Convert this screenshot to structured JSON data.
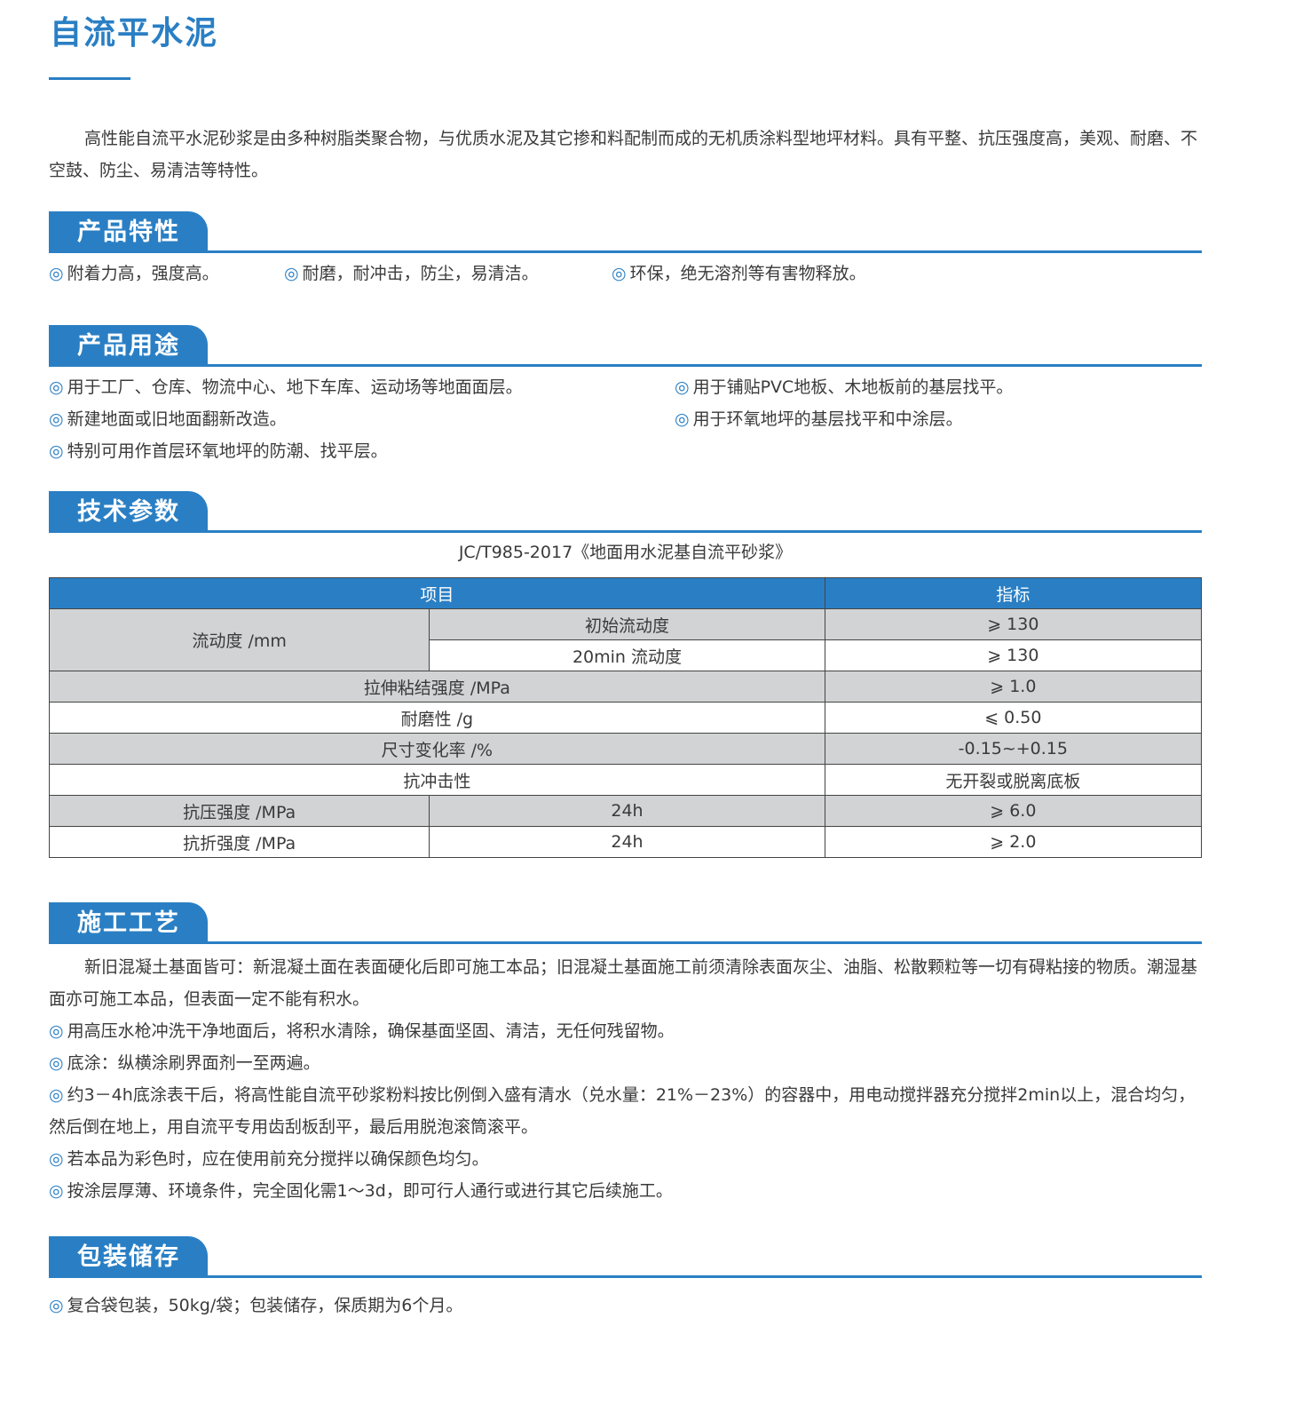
{
  "title": "自流平水泥",
  "intro": "高性能自流平水泥砂浆是由多种树脂类聚合物，与优质水泥及其它掺和料配制而成的无机质涂料型地坪材料。具有平整、抗压强度高，美观、耐磨、不空鼓、防尘、易清洁等特性。",
  "bullet_icon": "double-circle-icon",
  "bullet_glyph": "◎",
  "accent_color": "#2a7fc4",
  "features": {
    "heading": "产品特性",
    "items": [
      "附着力高，强度高。",
      "耐磨，耐冲击，防尘，易清洁。",
      "环保，绝无溶剂等有害物释放。"
    ]
  },
  "uses": {
    "heading": "产品用途",
    "items": [
      "用于工厂、仓库、物流中心、地下车库、运动场等地面面层。",
      "用于铺贴PVC地板、木地板前的基层找平。",
      "新建地面或旧地面翻新改造。",
      "用于环氧地坪的基层找平和中涂层。",
      "特别可用作首层环氧地坪的防潮、找平层。"
    ]
  },
  "tech": {
    "heading": "技术参数",
    "standard": "JC/T985-2017《地面用水泥基自流平砂浆》",
    "headers": [
      "项目",
      "指标"
    ],
    "rows": [
      {
        "item": "流动度 /mm",
        "sub": "初始流动度",
        "value": "⩾ 130"
      },
      {
        "sub": "20min 流动度",
        "value": "⩾ 130"
      },
      {
        "item": "拉伸粘结强度 /MPa",
        "value": "⩾ 1.0"
      },
      {
        "item": "耐磨性 /g",
        "value": "⩽ 0.50"
      },
      {
        "item": "尺寸变化率 /%",
        "value": "-0.15~+0.15"
      },
      {
        "item": "抗冲击性",
        "value": "无开裂或脱离底板"
      },
      {
        "item": "抗压强度 /MPa",
        "sub": "24h",
        "value": "⩾ 6.0"
      },
      {
        "item": "抗折强度 /MPa",
        "sub": "24h",
        "value": "⩾ 2.0"
      }
    ]
  },
  "process": {
    "heading": "施工工艺",
    "intro": "新旧混凝土基面皆可：新混凝土面在表面硬化后即可施工本品；旧混凝土基面施工前须清除表面灰尘、油脂、松散颗粒等一切有碍粘接的物质。潮湿基面亦可施工本品，但表面一定不能有积水。",
    "items": [
      "用高压水枪冲洗干净地面后，将积水清除，确保基面坚固、清洁，无任何残留物。",
      "底涂：纵横涂刷界面剂一至两遍。",
      "约3－4h底涂表干后，将高性能自流平砂浆粉料按比例倒入盛有清水（兑水量：21%－23%）的容器中，用电动搅拌器充分搅拌2min以上，混合均匀，然后倒在地上，用自流平专用齿刮板刮平，最后用脱泡滚筒滚平。",
      "若本品为彩色时，应在使用前充分搅拌以确保颜色均匀。",
      "按涂层厚薄、环境条件，完全固化需1～3d，即可行人通行或进行其它后续施工。"
    ]
  },
  "packaging": {
    "heading": "包装储存",
    "items": [
      "复合袋包装，50kg/袋；包装储存，保质期为6个月。"
    ]
  }
}
